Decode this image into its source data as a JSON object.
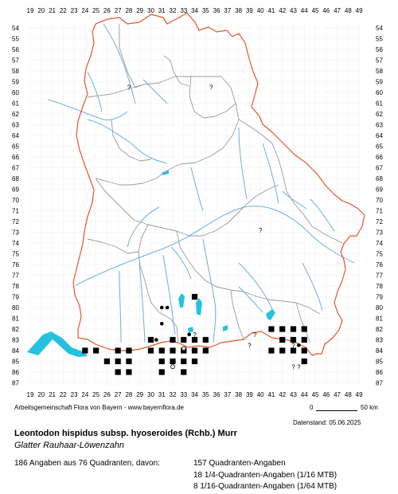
{
  "grid": {
    "x_labels": [
      "19",
      "20",
      "21",
      "22",
      "23",
      "24",
      "25",
      "26",
      "27",
      "28",
      "29",
      "30",
      "31",
      "32",
      "33",
      "34",
      "35",
      "36",
      "37",
      "38",
      "39",
      "40",
      "41",
      "42",
      "43",
      "44",
      "45",
      "46",
      "47",
      "48",
      "49"
    ],
    "y_labels": [
      "54",
      "55",
      "56",
      "57",
      "58",
      "59",
      "60",
      "61",
      "62",
      "63",
      "64",
      "65",
      "66",
      "67",
      "68",
      "69",
      "70",
      "71",
      "72",
      "73",
      "74",
      "75",
      "76",
      "77",
      "78",
      "79",
      "80",
      "81",
      "82",
      "83",
      "84",
      "85",
      "86",
      "87"
    ]
  },
  "colors": {
    "state_border": "#e8542a",
    "district_border": "#9a9a9a",
    "rivers": "#6ab0e0",
    "lakes": "#25c2e0",
    "record": "#000000"
  },
  "records": {
    "quadrant_squares": [
      [
        24,
        84
      ],
      [
        25,
        84
      ],
      [
        26,
        85
      ],
      [
        27,
        85
      ],
      [
        27,
        86
      ],
      [
        28,
        84
      ],
      [
        28,
        85
      ],
      [
        28,
        86
      ],
      [
        27,
        84
      ],
      [
        30,
        83
      ],
      [
        30,
        84
      ],
      [
        31,
        84
      ],
      [
        32,
        84
      ],
      [
        33,
        84
      ],
      [
        34,
        84
      ],
      [
        35,
        84
      ],
      [
        31,
        85
      ],
      [
        32,
        85
      ],
      [
        33,
        85
      ],
      [
        34,
        85
      ],
      [
        31,
        86
      ],
      [
        33,
        86
      ],
      [
        33,
        83
      ],
      [
        34,
        83
      ],
      [
        35,
        83
      ],
      [
        32,
        83
      ],
      [
        41,
        82
      ],
      [
        42,
        82
      ],
      [
        43,
        82
      ],
      [
        44,
        82
      ],
      [
        42,
        83
      ],
      [
        43,
        83
      ],
      [
        44,
        83
      ],
      [
        43,
        84
      ],
      [
        44,
        84
      ],
      [
        41,
        84
      ],
      [
        42,
        84
      ],
      [
        44,
        85
      ],
      [
        34,
        79
      ]
    ],
    "dots": [
      [
        31,
        80
      ],
      [
        31.5,
        80
      ],
      [
        31,
        81.5
      ],
      [
        30.5,
        83
      ],
      [
        33.5,
        82.5
      ],
      [
        43.5,
        83.5
      ],
      [
        34,
        79
      ]
    ],
    "circles": [
      [
        32,
        85.5
      ],
      [
        33,
        83.8
      ]
    ],
    "question_marks": [
      [
        28,
        59.5
      ],
      [
        35.5,
        59.5
      ],
      [
        40,
        72.8
      ],
      [
        34,
        82.5
      ],
      [
        39.5,
        82.5
      ],
      [
        39,
        83.5
      ],
      [
        43,
        83.5
      ],
      [
        43,
        85.5
      ],
      [
        43.5,
        85.5
      ]
    ]
  },
  "scale_bar": {
    "start": "0",
    "end": "50 km"
  },
  "credit": "Arbeitsgemeinschaft Flora von Bayern - www.bayernflora.de",
  "date": "Datenstand: 05.06.2025",
  "title": "Leontodon hispidus subsp. hyoseroides (Rchb.) Murr",
  "subtitle": "Glatter Rauhaar-Löwenzahn",
  "stats": {
    "total": "186 Angaben aus 76 Quadranten, davon:",
    "q_full": "157 Quadranten-Angaben",
    "q_quarter": "18 1/4-Quadranten-Angaben (1/16 MTB)",
    "q_sixteenth": "8 1/16-Quadranten-Angaben (1/64 MTB)"
  }
}
